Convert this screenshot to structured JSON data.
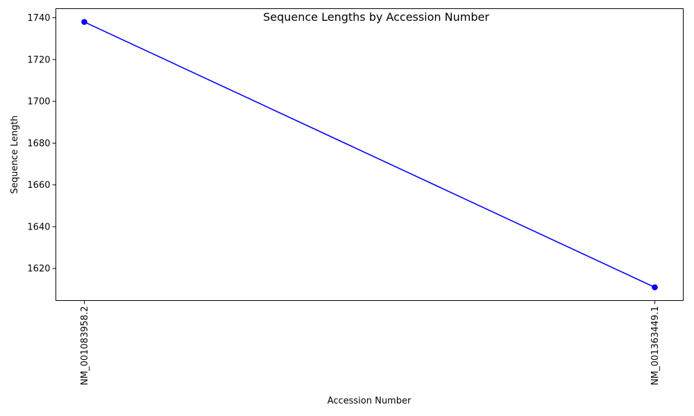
{
  "chart_data": {
    "type": "line",
    "title": "Sequence Lengths by Accession Number",
    "xlabel": "Accession Number",
    "ylabel": "Sequence Length",
    "categories": [
      "NM_001083958.2",
      "NM_001363449.1"
    ],
    "series": [
      {
        "values": [
          1738,
          1611
        ],
        "color": "#0000ff",
        "marker": "circle"
      }
    ],
    "ylim": [
      1604.65,
      1744.35
    ],
    "yticks": [
      1620,
      1640,
      1660,
      1680,
      1700,
      1720,
      1740
    ],
    "grid": false,
    "legend": "none"
  }
}
